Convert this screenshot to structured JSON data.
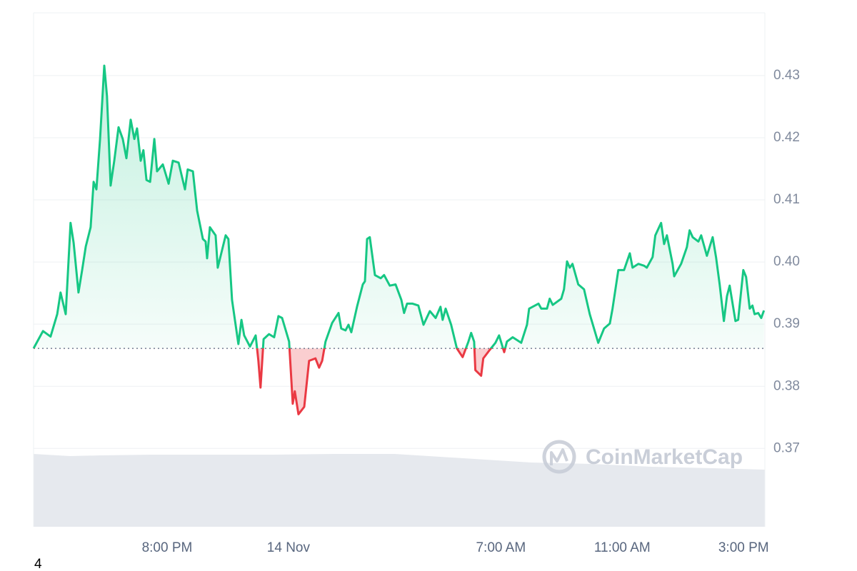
{
  "chart_data": {
    "type": "line",
    "baseline": 0.3861,
    "up_color": "#16c784",
    "down_color": "#ea3943",
    "watermark": "CoinMarketCap",
    "footer_label": "4",
    "xlim": [
      15.6,
      39.7
    ],
    "xticks": [
      {
        "value": 20,
        "label": "8:00 PM"
      },
      {
        "value": 24,
        "label": "14 Nov"
      },
      {
        "value": 31,
        "label": "7:00 AM"
      },
      {
        "value": 35,
        "label": "11:00 AM"
      },
      {
        "value": 39,
        "label": "3:00 PM"
      }
    ],
    "ylim": [
      0.3574,
      0.4401
    ],
    "yticks": [
      0.37,
      0.38,
      0.39,
      {
        "value": 0.4,
        "label": "0.40"
      },
      0.41,
      0.42,
      0.43
    ],
    "grid": true,
    "x": [
      15.6,
      15.91,
      16.16,
      16.38,
      16.49,
      16.66,
      16.82,
      16.92,
      17.08,
      17.2,
      17.32,
      17.48,
      17.58,
      17.67,
      17.79,
      17.93,
      18.02,
      18.14,
      18.26,
      18.4,
      18.54,
      18.66,
      18.8,
      18.92,
      19.01,
      19.13,
      19.22,
      19.32,
      19.44,
      19.58,
      19.67,
      19.86,
      20.05,
      20.19,
      20.38,
      20.59,
      20.68,
      20.85,
      20.99,
      21.18,
      21.27,
      21.32,
      21.41,
      21.6,
      21.67,
      21.93,
      22.02,
      22.14,
      22.35,
      22.45,
      22.54,
      22.73,
      22.92,
      23.01,
      23.08,
      23.18,
      23.36,
      23.53,
      23.67,
      23.79,
      24.02,
      24.14,
      24.21,
      24.33,
      24.52,
      24.68,
      24.89,
      25.01,
      25.11,
      25.22,
      25.44,
      25.65,
      25.74,
      25.88,
      25.98,
      26.07,
      26.26,
      26.45,
      26.52,
      26.59,
      26.68,
      26.85,
      27.04,
      27.15,
      27.34,
      27.53,
      27.72,
      27.81,
      27.91,
      28.09,
      28.28,
      28.45,
      28.66,
      28.85,
      29.01,
      29.08,
      29.18,
      29.36,
      29.55,
      29.74,
      29.93,
      30.02,
      30.12,
      30.16,
      30.35,
      30.42,
      30.64,
      30.82,
      30.94,
      31.11,
      31.2,
      31.39,
      31.67,
      31.86,
      31.93,
      32.24,
      32.33,
      32.52,
      32.61,
      32.71,
      32.99,
      33.08,
      33.18,
      33.27,
      33.36,
      33.55,
      33.74,
      33.93,
      34.21,
      34.4,
      34.59,
      34.68,
      34.87,
      35.06,
      35.25,
      35.34,
      35.53,
      35.72,
      35.81,
      36.0,
      36.09,
      36.28,
      36.38,
      36.47,
      36.66,
      36.71,
      36.94,
      37.13,
      37.22,
      37.32,
      37.51,
      37.6,
      37.79,
      37.98,
      38.09,
      38.21,
      38.35,
      38.45,
      38.54,
      38.73,
      38.82,
      38.99,
      39.08,
      39.2,
      39.29,
      39.36,
      39.48,
      39.58,
      39.67
    ],
    "values": [
      0.3861,
      0.3889,
      0.388,
      0.3916,
      0.3951,
      0.3916,
      0.4063,
      0.4031,
      0.3951,
      0.3987,
      0.4025,
      0.4056,
      0.4129,
      0.4117,
      0.4198,
      0.4316,
      0.4267,
      0.4123,
      0.4163,
      0.4217,
      0.4198,
      0.4167,
      0.4229,
      0.4198,
      0.4215,
      0.4163,
      0.418,
      0.4132,
      0.4129,
      0.4198,
      0.4146,
      0.4157,
      0.4126,
      0.4163,
      0.416,
      0.4117,
      0.4149,
      0.4146,
      0.4083,
      0.4037,
      0.4033,
      0.4006,
      0.4056,
      0.4043,
      0.3991,
      0.4043,
      0.4037,
      0.3939,
      0.3868,
      0.3907,
      0.3882,
      0.3864,
      0.3882,
      0.3841,
      0.3798,
      0.3876,
      0.3884,
      0.3879,
      0.3913,
      0.391,
      0.3872,
      0.3772,
      0.3792,
      0.3755,
      0.3767,
      0.3841,
      0.3845,
      0.383,
      0.3841,
      0.3872,
      0.3902,
      0.3918,
      0.3893,
      0.389,
      0.3899,
      0.3887,
      0.3928,
      0.3964,
      0.3969,
      0.4037,
      0.404,
      0.3979,
      0.3974,
      0.3979,
      0.3962,
      0.3964,
      0.3939,
      0.3918,
      0.3933,
      0.3933,
      0.393,
      0.3899,
      0.3921,
      0.391,
      0.3928,
      0.3907,
      0.3925,
      0.3899,
      0.3861,
      0.3847,
      0.3872,
      0.3886,
      0.3872,
      0.3826,
      0.3817,
      0.3845,
      0.3859,
      0.387,
      0.3882,
      0.3855,
      0.3872,
      0.3879,
      0.387,
      0.3899,
      0.3925,
      0.3933,
      0.3925,
      0.3925,
      0.3941,
      0.3931,
      0.3941,
      0.3956,
      0.4001,
      0.3991,
      0.3997,
      0.3964,
      0.3956,
      0.3916,
      0.387,
      0.3893,
      0.3901,
      0.3925,
      0.3987,
      0.3987,
      0.4014,
      0.3991,
      0.3997,
      0.3994,
      0.3991,
      0.4008,
      0.4043,
      0.4063,
      0.4029,
      0.4043,
      0.3997,
      0.3977,
      0.3997,
      0.4024,
      0.4051,
      0.404,
      0.4033,
      0.4043,
      0.401,
      0.404,
      0.4008,
      0.3964,
      0.3905,
      0.3945,
      0.3962,
      0.3905,
      0.3907,
      0.3987,
      0.3976,
      0.3925,
      0.393,
      0.3916,
      0.3918,
      0.391,
      0.3922
    ],
    "volume": {
      "color": "#e6e9ee",
      "ylim": [
        0,
        128
      ],
      "x": [
        15.6,
        16.8,
        17.8,
        19.5,
        21.5,
        23.5,
        25.5,
        27.5,
        29.0,
        30.5,
        32.0,
        34.0,
        36.0,
        38.0,
        39.7
      ],
      "values": [
        102,
        99,
        100,
        101,
        101,
        101,
        102,
        102,
        98,
        94,
        90,
        88,
        84,
        82,
        80
      ]
    }
  }
}
